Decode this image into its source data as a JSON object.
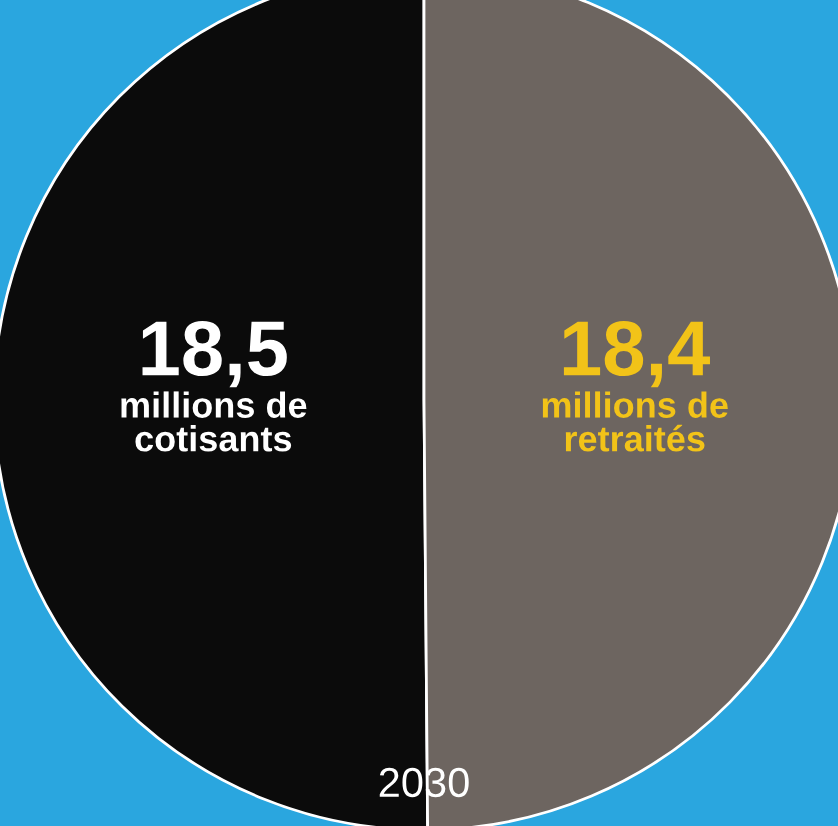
{
  "chart_data": {
    "type": "pie",
    "title": "2030",
    "categories": [
      "millions de\ncotisants",
      "millions de\nretraités"
    ],
    "values": [
      18.5,
      18.4
    ],
    "colors": [
      "#0b0b0b",
      "#6d6560"
    ],
    "value_labels": [
      "18,5",
      "18,4"
    ]
  }
}
